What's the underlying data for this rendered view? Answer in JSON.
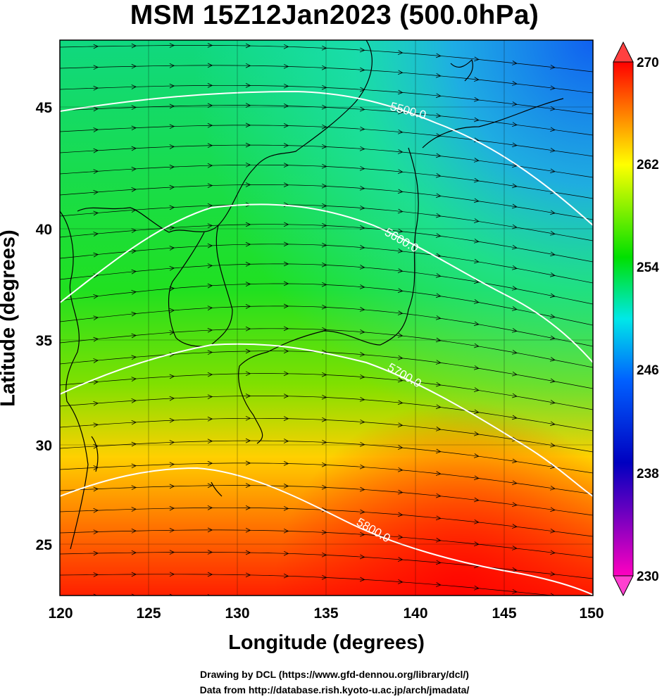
{
  "title": "MSM 15Z12Jan2023 (500.0hPa)",
  "axes": {
    "xlabel": "Longitude (degrees)",
    "ylabel": "Latitude  (degrees)",
    "xlim": [
      120,
      150
    ],
    "ylim": [
      22.5,
      47.5
    ],
    "xticks": [
      "120",
      "125",
      "130",
      "135",
      "140",
      "145",
      "150"
    ],
    "yticks": [
      "25",
      "30",
      "35",
      "40",
      "45"
    ]
  },
  "colorbar": {
    "min": 230,
    "max": 270,
    "tick_labels": [
      "270",
      "262",
      "254",
      "246",
      "238",
      "230"
    ],
    "colors": [
      "#ff0000",
      "#ff8000",
      "#ffff00",
      "#00e000",
      "#00e8e8",
      "#0060ff",
      "#0000c0",
      "#ff00c0"
    ]
  },
  "contours": [
    {
      "label": "5500.0"
    },
    {
      "label": "5600.0"
    },
    {
      "label": "5700.0"
    },
    {
      "label": "5800.0"
    }
  ],
  "credits": {
    "line1": "Drawing by DCL (https://www.gfd-dennou.org/library/dcl/)",
    "line2": "Data from http://database.rish.kyoto-u.ac.jp/arch/jmadata/"
  },
  "chart_data": {
    "type": "heatmap",
    "variable": "500 hPa temperature (K) with geopotential height contours and wind streamlines",
    "contour_levels": [
      5500,
      5600,
      5700,
      5800
    ],
    "colorbar_range": [
      230,
      270
    ],
    "field_notes_values": {
      "southwest_corner_K": 266,
      "southeast_corner_K": 268,
      "northwest_corner_K": 254,
      "northeast_corner_K": 240,
      "center_K": 254
    }
  }
}
